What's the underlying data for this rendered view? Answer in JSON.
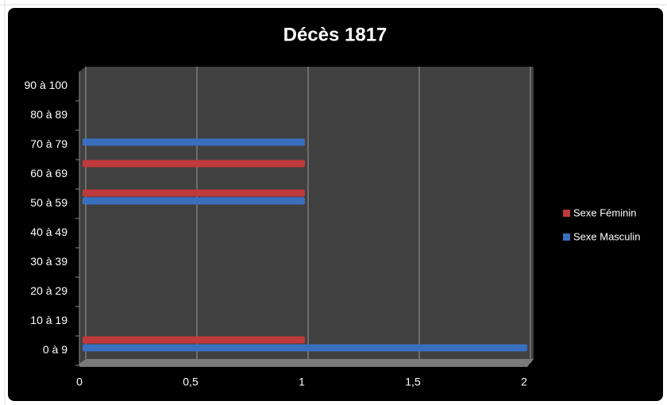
{
  "chart_data": {
    "type": "bar",
    "orientation": "horizontal",
    "title": "Décès 1817",
    "categories": [
      "0 à 9",
      "10 à 19",
      "20 à 29",
      "30 à 39",
      "40 à 49",
      "50 à 59",
      "60 à 69",
      "70 à 79",
      "80 à 89",
      "90 à 100"
    ],
    "series": [
      {
        "name": "Sexe Féminin",
        "color": "#c0393b",
        "values": [
          1,
          0,
          0,
          0,
          0,
          1,
          1,
          0,
          0,
          0
        ]
      },
      {
        "name": "Sexe Masculin",
        "color": "#3a6fc0",
        "values": [
          2,
          0,
          0,
          0,
          0,
          1,
          0,
          1,
          0,
          0
        ]
      }
    ],
    "xlim": [
      0,
      2
    ],
    "xticks": [
      0,
      {
        "value": 0.5,
        "label": "0,5"
      },
      1,
      {
        "value": 1.5,
        "label": "1,5"
      },
      2
    ],
    "grid": true,
    "legend": "right"
  }
}
